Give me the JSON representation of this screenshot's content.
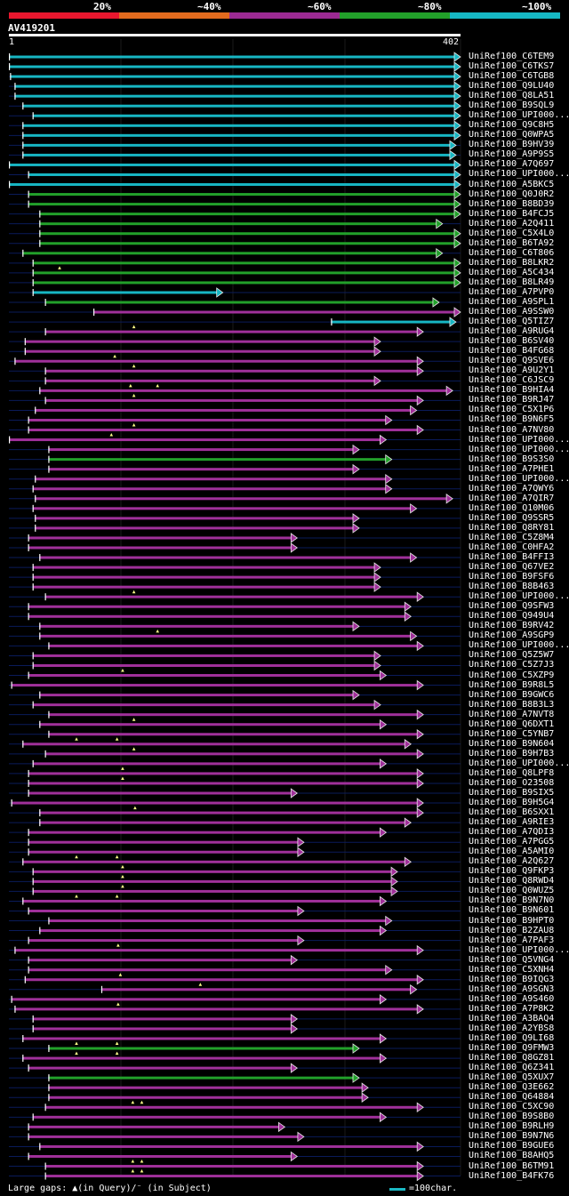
{
  "legend": [
    {
      "label": "20%",
      "color": "#e8172e"
    },
    {
      "label": "~40%",
      "color": "#e36b1e"
    },
    {
      "label": "~60%",
      "color": "#9c2a93"
    },
    {
      "label": "~80%",
      "color": "#22a02a"
    },
    {
      "label": "~100%",
      "color": "#16b8c4"
    }
  ],
  "query": {
    "id": "AV419201",
    "start": "1",
    "end": "402",
    "length": 402
  },
  "footer": {
    "gaps": "Large gaps: ▲(in Query)/⁻ (in Subject)",
    "scale": "=100char."
  },
  "colors": {
    "c": "#17b6c3",
    "g": "#22a02a",
    "m": "#a0309a",
    "line": "#0a1b5a",
    "marker": "#ffff88"
  },
  "hits": [
    {
      "label": "UniRef100_C6TEM9",
      "c": "c",
      "s": 1,
      "e": 402,
      "n": []
    },
    {
      "label": "UniRef100_C6TKS7",
      "c": "c",
      "s": 1,
      "e": 402,
      "n": []
    },
    {
      "label": "UniRef100_C6TGB8",
      "c": "c",
      "s": 2,
      "e": 402,
      "n": []
    },
    {
      "label": "UniRef100_Q9LU40",
      "c": "c",
      "s": 6,
      "e": 402,
      "n": []
    },
    {
      "label": "UniRef100_Q8LA51",
      "c": "c",
      "s": 6,
      "e": 402,
      "n": []
    },
    {
      "label": "UniRef100_B9SQL9",
      "c": "c",
      "s": 13,
      "e": 402,
      "n": []
    },
    {
      "label": "UniRef100_UPI000...",
      "c": "c",
      "s": 22,
      "e": 402,
      "n": []
    },
    {
      "label": "UniRef100_Q9C8H5",
      "c": "c",
      "s": 13,
      "e": 402,
      "n": []
    },
    {
      "label": "UniRef100_Q0WPA5",
      "c": "c",
      "s": 13,
      "e": 402,
      "n": []
    },
    {
      "label": "UniRef100_B9HV39",
      "c": "c",
      "s": 13,
      "e": 398,
      "n": []
    },
    {
      "label": "UniRef100_A9P9S5",
      "c": "c",
      "s": 13,
      "e": 398,
      "n": []
    },
    {
      "label": "UniRef100_A7Q697",
      "c": "c",
      "s": 1,
      "e": 402,
      "n": []
    },
    {
      "label": "UniRef100_UPI000...",
      "c": "c",
      "s": 18,
      "e": 402,
      "n": []
    },
    {
      "label": "UniRef100_A5BKC5",
      "c": "c",
      "s": 1,
      "e": 402,
      "n": []
    },
    {
      "label": "UniRef100_Q0J0R2",
      "c": "g",
      "s": 18,
      "e": 402,
      "n": []
    },
    {
      "label": "UniRef100_B8BD39",
      "c": "g",
      "s": 18,
      "e": 402,
      "n": []
    },
    {
      "label": "UniRef100_B4FCJ5",
      "c": "g",
      "s": 28,
      "e": 402,
      "n": []
    },
    {
      "label": "UniRef100_A2Q411",
      "c": "g",
      "s": 28,
      "e": 386,
      "n": []
    },
    {
      "label": "UniRef100_C5X4L0",
      "c": "g",
      "s": 28,
      "e": 402,
      "n": []
    },
    {
      "label": "UniRef100_B6TA92",
      "c": "g",
      "s": 28,
      "e": 402,
      "n": []
    },
    {
      "label": "UniRef100_C6T806",
      "c": "g",
      "s": 13,
      "e": 386,
      "n": []
    },
    {
      "label": "UniRef100_B8LKR2",
      "c": "g",
      "s": 22,
      "e": 402,
      "n": []
    },
    {
      "label": "UniRef100_A5C434",
      "c": "g",
      "s": 22,
      "e": 402,
      "n": [
        46
      ]
    },
    {
      "label": "UniRef100_B8LR49",
      "c": "g",
      "s": 22,
      "e": 402,
      "n": []
    },
    {
      "label": "UniRef100_A7PVP0",
      "c": "c",
      "s": 22,
      "e": 191,
      "n": []
    },
    {
      "label": "UniRef100_A9SPL1",
      "c": "g",
      "s": 33,
      "e": 383,
      "n": []
    },
    {
      "label": "UniRef100_A9SSW0",
      "c": "m",
      "s": 76,
      "e": 402,
      "n": []
    },
    {
      "label": "UniRef100_Q5TIZ7",
      "c": "c",
      "s": 287,
      "e": 398,
      "n": []
    },
    {
      "label": "UniRef100_A9RUG4",
      "c": "m",
      "s": 33,
      "e": 369,
      "n": [
        112
      ]
    },
    {
      "label": "UniRef100_B6SV40",
      "c": "m",
      "s": 15,
      "e": 331,
      "n": []
    },
    {
      "label": "UniRef100_B4FG68",
      "c": "m",
      "s": 15,
      "e": 331,
      "n": []
    },
    {
      "label": "UniRef100_Q9SVE6",
      "c": "m",
      "s": 6,
      "e": 369,
      "n": [
        95
      ]
    },
    {
      "label": "UniRef100_A9U2Y1",
      "c": "m",
      "s": 33,
      "e": 369,
      "n": [
        112
      ]
    },
    {
      "label": "UniRef100_C6JSC9",
      "c": "m",
      "s": 33,
      "e": 331,
      "n": []
    },
    {
      "label": "UniRef100_B9HIA4",
      "c": "m",
      "s": 28,
      "e": 395,
      "n": [
        109,
        133
      ]
    },
    {
      "label": "UniRef100_B9RJ47",
      "c": "m",
      "s": 33,
      "e": 369,
      "n": [
        112
      ]
    },
    {
      "label": "UniRef100_C5X1P6",
      "c": "m",
      "s": 24,
      "e": 363,
      "n": []
    },
    {
      "label": "UniRef100_B9N6F5",
      "c": "m",
      "s": 18,
      "e": 341,
      "n": []
    },
    {
      "label": "UniRef100_A7NV80",
      "c": "m",
      "s": 18,
      "e": 369,
      "n": [
        112
      ]
    },
    {
      "label": "UniRef100_UPI000...",
      "c": "m",
      "s": 1,
      "e": 336,
      "n": [
        92
      ]
    },
    {
      "label": "UniRef100_UPI000...",
      "c": "m",
      "s": 36,
      "e": 312,
      "n": []
    },
    {
      "label": "UniRef100_B9S3S0",
      "c": "g",
      "s": 36,
      "e": 341,
      "n": []
    },
    {
      "label": "UniRef100_A7PHE1",
      "c": "m",
      "s": 36,
      "e": 312,
      "n": []
    },
    {
      "label": "UniRef100_UPI000...",
      "c": "m",
      "s": 24,
      "e": 341,
      "n": []
    },
    {
      "label": "UniRef100_A7QWY6",
      "c": "m",
      "s": 22,
      "e": 341,
      "n": []
    },
    {
      "label": "UniRef100_A7QIR7",
      "c": "m",
      "s": 24,
      "e": 395,
      "n": []
    },
    {
      "label": "UniRef100_Q10M06",
      "c": "m",
      "s": 22,
      "e": 363,
      "n": []
    },
    {
      "label": "UniRef100_Q9SSR5",
      "c": "m",
      "s": 24,
      "e": 312,
      "n": []
    },
    {
      "label": "UniRef100_Q8RY81",
      "c": "m",
      "s": 24,
      "e": 312,
      "n": []
    },
    {
      "label": "UniRef100_C5Z8M4",
      "c": "m",
      "s": 18,
      "e": 257,
      "n": []
    },
    {
      "label": "UniRef100_C0HFA2",
      "c": "m",
      "s": 18,
      "e": 257,
      "n": []
    },
    {
      "label": "UniRef100_B4FFI3",
      "c": "m",
      "s": 28,
      "e": 363,
      "n": []
    },
    {
      "label": "UniRef100_Q67VE2",
      "c": "m",
      "s": 22,
      "e": 331,
      "n": []
    },
    {
      "label": "UniRef100_B9FSF6",
      "c": "m",
      "s": 22,
      "e": 331,
      "n": []
    },
    {
      "label": "UniRef100_B8B463",
      "c": "m",
      "s": 22,
      "e": 331,
      "n": []
    },
    {
      "label": "UniRef100_UPI000...",
      "c": "m",
      "s": 33,
      "e": 369,
      "n": [
        112
      ]
    },
    {
      "label": "UniRef100_Q9SFW3",
      "c": "m",
      "s": 18,
      "e": 358,
      "n": []
    },
    {
      "label": "UniRef100_Q949U4",
      "c": "m",
      "s": 18,
      "e": 358,
      "n": []
    },
    {
      "label": "UniRef100_B9RV42",
      "c": "m",
      "s": 28,
      "e": 312,
      "n": []
    },
    {
      "label": "UniRef100_A9SGP9",
      "c": "m",
      "s": 28,
      "e": 363,
      "n": [
        133
      ]
    },
    {
      "label": "UniRef100_UPI000...",
      "c": "m",
      "s": 36,
      "e": 369,
      "n": []
    },
    {
      "label": "UniRef100_Q5Z5W7",
      "c": "m",
      "s": 22,
      "e": 331,
      "n": []
    },
    {
      "label": "UniRef100_C5Z7J3",
      "c": "m",
      "s": 22,
      "e": 331,
      "n": []
    },
    {
      "label": "UniRef100_C5XZP9",
      "c": "m",
      "s": 18,
      "e": 336,
      "n": [
        102
      ]
    },
    {
      "label": "UniRef100_B9R8L5",
      "c": "m",
      "s": 3,
      "e": 369,
      "n": []
    },
    {
      "label": "UniRef100_B9GWC6",
      "c": "m",
      "s": 28,
      "e": 312,
      "n": []
    },
    {
      "label": "UniRef100_B8B3L3",
      "c": "m",
      "s": 22,
      "e": 331,
      "n": []
    },
    {
      "label": "UniRef100_A7NVT8",
      "c": "m",
      "s": 36,
      "e": 369,
      "n": []
    },
    {
      "label": "UniRef100_Q6DXT1",
      "c": "m",
      "s": 28,
      "e": 336,
      "n": [
        112
      ]
    },
    {
      "label": "UniRef100_C5YNB7",
      "c": "m",
      "s": 36,
      "e": 369,
      "n": []
    },
    {
      "label": "UniRef100_B9N604",
      "c": "m",
      "s": 13,
      "e": 358,
      "n": [
        61,
        97
      ]
    },
    {
      "label": "UniRef100_B9H7B3",
      "c": "m",
      "s": 33,
      "e": 369,
      "n": [
        112
      ]
    },
    {
      "label": "UniRef100_UPI000...",
      "c": "m",
      "s": 22,
      "e": 336,
      "n": []
    },
    {
      "label": "UniRef100_Q8LPF8",
      "c": "m",
      "s": 18,
      "e": 369,
      "n": [
        102
      ]
    },
    {
      "label": "UniRef100_O23508",
      "c": "m",
      "s": 18,
      "e": 369,
      "n": [
        102
      ]
    },
    {
      "label": "UniRef100_B9SIX5",
      "c": "m",
      "s": 18,
      "e": 257,
      "n": []
    },
    {
      "label": "UniRef100_B9H5G4",
      "c": "m",
      "s": 3,
      "e": 369,
      "n": []
    },
    {
      "label": "UniRef100_B6SXX1",
      "c": "m",
      "s": 28,
      "e": 369,
      "n": [
        113
      ]
    },
    {
      "label": "UniRef100_A9RIE3",
      "c": "m",
      "s": 28,
      "e": 358,
      "n": []
    },
    {
      "label": "UniRef100_A7QDI3",
      "c": "m",
      "s": 18,
      "e": 336,
      "n": []
    },
    {
      "label": "UniRef100_A7PGG5",
      "c": "m",
      "s": 18,
      "e": 263,
      "n": []
    },
    {
      "label": "UniRef100_A5AMI0",
      "c": "m",
      "s": 18,
      "e": 263,
      "n": []
    },
    {
      "label": "UniRef100_A2Q627",
      "c": "m",
      "s": 13,
      "e": 358,
      "n": [
        61,
        97
      ]
    },
    {
      "label": "UniRef100_Q9FKP3",
      "c": "m",
      "s": 22,
      "e": 346,
      "n": [
        102
      ]
    },
    {
      "label": "UniRef100_Q8RWD4",
      "c": "m",
      "s": 22,
      "e": 346,
      "n": [
        102
      ]
    },
    {
      "label": "UniRef100_Q0WUZ5",
      "c": "m",
      "s": 22,
      "e": 346,
      "n": [
        102
      ]
    },
    {
      "label": "UniRef100_B9N7N0",
      "c": "m",
      "s": 13,
      "e": 336,
      "n": [
        61,
        97
      ]
    },
    {
      "label": "UniRef100_B9N601",
      "c": "m",
      "s": 18,
      "e": 263,
      "n": []
    },
    {
      "label": "UniRef100_B9HPT0",
      "c": "m",
      "s": 36,
      "e": 341,
      "n": []
    },
    {
      "label": "UniRef100_B2ZAU8",
      "c": "m",
      "s": 28,
      "e": 336,
      "n": []
    },
    {
      "label": "UniRef100_A7PAF3",
      "c": "m",
      "s": 18,
      "e": 263,
      "n": []
    },
    {
      "label": "UniRef100_UPI000...",
      "c": "m",
      "s": 6,
      "e": 369,
      "n": [
        98
      ]
    },
    {
      "label": "UniRef100_Q5VNG4",
      "c": "m",
      "s": 18,
      "e": 257,
      "n": []
    },
    {
      "label": "UniRef100_C5XNH4",
      "c": "m",
      "s": 18,
      "e": 341,
      "n": []
    },
    {
      "label": "UniRef100_B9IQG3",
      "c": "m",
      "s": 15,
      "e": 369,
      "n": [
        100
      ]
    },
    {
      "label": "UniRef100_A9SGN3",
      "c": "m",
      "s": 83,
      "e": 363,
      "n": [
        171
      ]
    },
    {
      "label": "UniRef100_A9S460",
      "c": "m",
      "s": 3,
      "e": 336,
      "n": []
    },
    {
      "label": "UniRef100_A7P8K2",
      "c": "m",
      "s": 6,
      "e": 369,
      "n": [
        98
      ]
    },
    {
      "label": "UniRef100_A3BAQ4",
      "c": "m",
      "s": 22,
      "e": 257,
      "n": []
    },
    {
      "label": "UniRef100_A2YBS8",
      "c": "m",
      "s": 22,
      "e": 257,
      "n": []
    },
    {
      "label": "UniRef100_Q9LI68",
      "c": "m",
      "s": 13,
      "e": 336,
      "n": []
    },
    {
      "label": "UniRef100_Q9FMW3",
      "c": "g",
      "s": 36,
      "e": 312,
      "n": [
        61,
        97
      ]
    },
    {
      "label": "UniRef100_Q8GZ81",
      "c": "m",
      "s": 13,
      "e": 336,
      "n": [
        61,
        97
      ]
    },
    {
      "label": "UniRef100_Q6Z341",
      "c": "m",
      "s": 18,
      "e": 257,
      "n": []
    },
    {
      "label": "UniRef100_Q5XUX7",
      "c": "g",
      "s": 36,
      "e": 312,
      "n": []
    },
    {
      "label": "UniRef100_Q3E662",
      "c": "m",
      "s": 36,
      "e": 320,
      "n": []
    },
    {
      "label": "UniRef100_Q64884",
      "c": "m",
      "s": 36,
      "e": 320,
      "n": []
    },
    {
      "label": "UniRef100_C5XC90",
      "c": "m",
      "s": 33,
      "e": 369,
      "n": [
        111,
        119
      ]
    },
    {
      "label": "UniRef100_B9S8B0",
      "c": "m",
      "s": 22,
      "e": 336,
      "n": []
    },
    {
      "label": "UniRef100_B9RLH9",
      "c": "m",
      "s": 18,
      "e": 246,
      "n": []
    },
    {
      "label": "UniRef100_B9N7N6",
      "c": "m",
      "s": 18,
      "e": 263,
      "n": []
    },
    {
      "label": "UniRef100_B9GUE6",
      "c": "m",
      "s": 28,
      "e": 369,
      "n": []
    },
    {
      "label": "UniRef100_B8AHQ5",
      "c": "m",
      "s": 18,
      "e": 257,
      "n": []
    },
    {
      "label": "UniRef100_B6TM91",
      "c": "m",
      "s": 33,
      "e": 369,
      "n": [
        111,
        119
      ]
    },
    {
      "label": "UniRef100_B4FK76",
      "c": "m",
      "s": 33,
      "e": 369,
      "n": [
        111,
        119
      ]
    }
  ]
}
